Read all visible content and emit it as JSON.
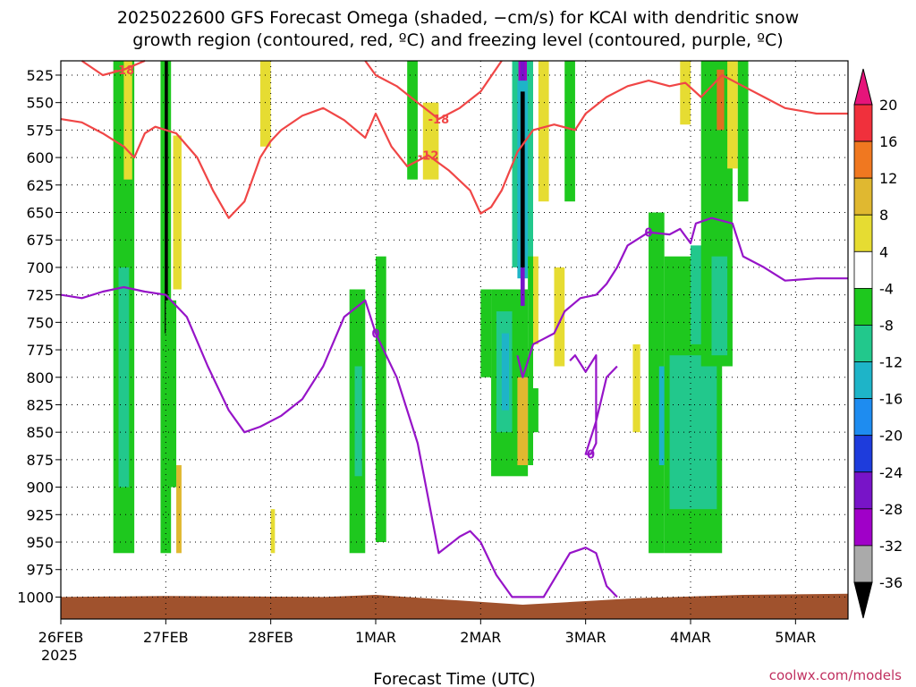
{
  "chart_data": {
    "type": "heatmap",
    "title_lines": [
      "2025022600 GFS Forecast Omega (shaded, −cm/s) for KCAI with dendritic snow",
      "growth region (contoured, red, ºC) and freezing level (contoured, purple, ºC)"
    ],
    "xlabel": "Forecast Time (UTC)",
    "x_ticks": [
      "26FEB",
      "27FEB",
      "28FEB",
      "1MAR",
      "2MAR",
      "3MAR",
      "4MAR",
      "5MAR"
    ],
    "x_year": "2025",
    "xlim_days": [
      0,
      7.5
    ],
    "ylabel": "",
    "y_ticks": [
      525,
      550,
      575,
      600,
      625,
      650,
      675,
      700,
      725,
      750,
      775,
      800,
      825,
      850,
      875,
      900,
      925,
      950,
      975,
      1000
    ],
    "ylim": [
      512,
      1020
    ],
    "grid": true,
    "colorbar": {
      "labels": [
        "20",
        "16",
        "12",
        "8",
        "4",
        "-4",
        "-8",
        "-12",
        "-16",
        "-20",
        "-24",
        "-28",
        "-32",
        "-36"
      ],
      "bins": [
        {
          "from": 16,
          "to": 20,
          "color": "#f0303c"
        },
        {
          "from": 12,
          "to": 16,
          "color": "#f07820"
        },
        {
          "from": 8,
          "to": 12,
          "color": "#e0b830"
        },
        {
          "from": 4,
          "to": 8,
          "color": "#e6dc32"
        },
        {
          "from": -4,
          "to": 4,
          "color": "#ffffff"
        },
        {
          "from": -8,
          "to": -4,
          "color": "#1ec81e"
        },
        {
          "from": -12,
          "to": -8,
          "color": "#22c88c"
        },
        {
          "from": -16,
          "to": -12,
          "color": "#1eb4c8"
        },
        {
          "from": -20,
          "to": -16,
          "color": "#1e8cf0"
        },
        {
          "from": -24,
          "to": -20,
          "color": "#1e3cdc"
        },
        {
          "from": -28,
          "to": -24,
          "color": "#7814c8"
        },
        {
          "from": -32,
          "to": -28,
          "color": "#a000c8"
        },
        {
          "from": -36,
          "to": -32,
          "color": "#aaaaaa"
        }
      ],
      "over_color": "#e6147a",
      "under_color": "#000000"
    },
    "omega_features": [
      {
        "x0": 0.5,
        "x1": 0.7,
        "p0": 510,
        "p1": 960,
        "color": "#1ec81e"
      },
      {
        "x0": 0.55,
        "x1": 0.65,
        "p0": 700,
        "p1": 900,
        "color": "#22c88c"
      },
      {
        "x0": 0.6,
        "x1": 0.68,
        "p0": 510,
        "p1": 620,
        "color": "#e6dc32"
      },
      {
        "x0": 0.95,
        "x1": 1.05,
        "p0": 510,
        "p1": 960,
        "color": "#1ec81e"
      },
      {
        "x0": 0.99,
        "x1": 1.02,
        "p0": 512,
        "p1": 760,
        "color": "#000000"
      },
      {
        "x0": 1.07,
        "x1": 1.15,
        "p0": 580,
        "p1": 720,
        "color": "#e6dc32"
      },
      {
        "x0": 1.1,
        "x1": 1.15,
        "p0": 880,
        "p1": 960,
        "color": "#e0b830"
      },
      {
        "x0": 1.0,
        "x1": 1.1,
        "p0": 730,
        "p1": 900,
        "color": "#1ec81e"
      },
      {
        "x0": 1.9,
        "x1": 2.0,
        "p0": 512,
        "p1": 590,
        "color": "#e6dc32"
      },
      {
        "x0": 2.0,
        "x1": 2.04,
        "p0": 920,
        "p1": 960,
        "color": "#e6dc32"
      },
      {
        "x0": 2.75,
        "x1": 2.9,
        "p0": 720,
        "p1": 960,
        "color": "#1ec81e"
      },
      {
        "x0": 2.8,
        "x1": 2.87,
        "p0": 790,
        "p1": 890,
        "color": "#22c88c"
      },
      {
        "x0": 3.0,
        "x1": 3.1,
        "p0": 690,
        "p1": 950,
        "color": "#1ec81e"
      },
      {
        "x0": 3.3,
        "x1": 3.4,
        "p0": 512,
        "p1": 620,
        "color": "#1ec81e"
      },
      {
        "x0": 3.45,
        "x1": 3.6,
        "p0": 550,
        "p1": 620,
        "color": "#e6dc32"
      },
      {
        "x0": 4.55,
        "x1": 4.65,
        "p0": 512,
        "p1": 640,
        "color": "#e6dc32"
      },
      {
        "x0": 4.8,
        "x1": 4.9,
        "p0": 512,
        "p1": 640,
        "color": "#1ec81e"
      },
      {
        "x0": 4.7,
        "x1": 4.8,
        "p0": 700,
        "p1": 790,
        "color": "#e6dc32"
      },
      {
        "x0": 4.0,
        "x1": 4.1,
        "p0": 720,
        "p1": 800,
        "color": "#1ec81e"
      },
      {
        "x0": 4.1,
        "x1": 4.45,
        "p0": 720,
        "p1": 890,
        "color": "#1ec81e"
      },
      {
        "x0": 4.15,
        "x1": 4.3,
        "p0": 740,
        "p1": 850,
        "color": "#22c88c"
      },
      {
        "x0": 4.2,
        "x1": 4.27,
        "p0": 760,
        "p1": 830,
        "color": "#1eb4c8"
      },
      {
        "x0": 4.3,
        "x1": 4.5,
        "p0": 512,
        "p1": 700,
        "color": "#22c88c"
      },
      {
        "x0": 4.36,
        "x1": 4.44,
        "p0": 512,
        "p1": 550,
        "color": "#a000c8"
      },
      {
        "x0": 4.38,
        "x1": 4.42,
        "p0": 512,
        "p1": 530,
        "color": "#7814c8"
      },
      {
        "x0": 4.35,
        "x1": 4.45,
        "p0": 530,
        "p1": 710,
        "color": "#1eb4c8"
      },
      {
        "x0": 4.38,
        "x1": 4.42,
        "p0": 540,
        "p1": 700,
        "color": "#000000"
      },
      {
        "x0": 4.38,
        "x1": 4.42,
        "p0": 700,
        "p1": 735,
        "color": "#7814c8"
      },
      {
        "x0": 4.5,
        "x1": 4.55,
        "p0": 810,
        "p1": 850,
        "color": "#1ec81e"
      },
      {
        "x0": 4.45,
        "x1": 4.5,
        "p0": 690,
        "p1": 880,
        "color": "#1ec81e"
      },
      {
        "x0": 4.5,
        "x1": 4.55,
        "p0": 690,
        "p1": 770,
        "color": "#e6dc32"
      },
      {
        "x0": 4.35,
        "x1": 4.45,
        "p0": 800,
        "p1": 880,
        "color": "#e0b830"
      },
      {
        "x0": 5.45,
        "x1": 5.52,
        "p0": 770,
        "p1": 850,
        "color": "#e6dc32"
      },
      {
        "x0": 5.6,
        "x1": 5.75,
        "p0": 650,
        "p1": 960,
        "color": "#1ec81e"
      },
      {
        "x0": 5.7,
        "x1": 5.85,
        "p0": 790,
        "p1": 880,
        "color": "#1eb4c8"
      },
      {
        "x0": 5.75,
        "x1": 6.3,
        "p0": 690,
        "p1": 960,
        "color": "#1ec81e"
      },
      {
        "x0": 5.8,
        "x1": 6.25,
        "p0": 780,
        "p1": 920,
        "color": "#22c88c"
      },
      {
        "x0": 6.0,
        "x1": 6.2,
        "p0": 680,
        "p1": 770,
        "color": "#22c88c"
      },
      {
        "x0": 6.1,
        "x1": 6.4,
        "p0": 512,
        "p1": 790,
        "color": "#1ec81e"
      },
      {
        "x0": 6.2,
        "x1": 6.35,
        "p0": 690,
        "p1": 780,
        "color": "#22c88c"
      },
      {
        "x0": 6.25,
        "x1": 6.32,
        "p0": 520,
        "p1": 575,
        "color": "#e07020"
      },
      {
        "x0": 5.9,
        "x1": 6.0,
        "p0": 512,
        "p1": 570,
        "color": "#e6dc32"
      },
      {
        "x0": 6.35,
        "x1": 6.45,
        "p0": 512,
        "p1": 610,
        "color": "#e6dc32"
      },
      {
        "x0": 6.45,
        "x1": 6.55,
        "p0": 512,
        "p1": 640,
        "color": "#1ec81e"
      }
    ],
    "series": [
      {
        "name": "-12",
        "color": "#f04646",
        "points": [
          [
            0,
            565
          ],
          [
            0.2,
            568
          ],
          [
            0.4,
            578
          ],
          [
            0.6,
            590
          ],
          [
            0.7,
            600
          ],
          [
            0.8,
            578
          ],
          [
            0.9,
            572
          ],
          [
            1.1,
            578
          ],
          [
            1.3,
            600
          ],
          [
            1.45,
            630
          ],
          [
            1.6,
            655
          ],
          [
            1.75,
            640
          ],
          [
            1.9,
            600
          ],
          [
            2.0,
            585
          ],
          [
            2.1,
            575
          ],
          [
            2.3,
            562
          ],
          [
            2.5,
            555
          ],
          [
            2.7,
            566
          ],
          [
            2.9,
            582
          ],
          [
            3.0,
            560
          ],
          [
            3.15,
            590
          ],
          [
            3.3,
            608
          ],
          [
            3.5,
            598
          ],
          [
            3.7,
            612
          ],
          [
            3.9,
            630
          ],
          [
            4.0,
            651
          ],
          [
            4.1,
            645
          ],
          [
            4.2,
            630
          ],
          [
            4.35,
            595
          ],
          [
            4.5,
            575
          ],
          [
            4.7,
            570
          ],
          [
            4.9,
            575
          ],
          [
            5.0,
            560
          ],
          [
            5.2,
            545
          ],
          [
            5.4,
            535
          ],
          [
            5.6,
            530
          ],
          [
            5.8,
            535
          ],
          [
            5.95,
            532
          ],
          [
            6.1,
            545
          ],
          [
            6.3,
            525
          ],
          [
            6.5,
            535
          ],
          [
            6.7,
            545
          ],
          [
            6.9,
            555
          ],
          [
            7.2,
            560
          ],
          [
            7.5,
            560
          ]
        ]
      },
      {
        "name": "-18",
        "color": "#f04646",
        "points": [
          [
            0.2,
            512
          ],
          [
            0.4,
            525
          ],
          [
            0.6,
            520
          ],
          [
            0.8,
            512
          ]
        ]
      },
      {
        "name": "-18",
        "color": "#f04646",
        "points": [
          [
            2.9,
            512
          ],
          [
            3.0,
            525
          ],
          [
            3.2,
            535
          ],
          [
            3.4,
            550
          ],
          [
            3.6,
            565
          ],
          [
            3.8,
            555
          ],
          [
            4.0,
            540
          ],
          [
            4.2,
            512
          ]
        ]
      },
      {
        "name": "0",
        "color": "#9614c8",
        "points": [
          [
            0,
            725
          ],
          [
            0.2,
            728
          ],
          [
            0.4,
            722
          ],
          [
            0.6,
            718
          ],
          [
            0.8,
            722
          ],
          [
            1.0,
            725
          ],
          [
            1.2,
            745
          ],
          [
            1.4,
            790
          ],
          [
            1.6,
            830
          ],
          [
            1.75,
            850
          ],
          [
            1.9,
            845
          ],
          [
            2.1,
            835
          ],
          [
            2.3,
            820
          ],
          [
            2.5,
            790
          ],
          [
            2.7,
            745
          ],
          [
            2.9,
            730
          ],
          [
            3.0,
            760
          ],
          [
            3.1,
            780
          ],
          [
            3.2,
            800
          ],
          [
            3.4,
            860
          ],
          [
            3.5,
            910
          ],
          [
            3.6,
            960
          ],
          [
            3.8,
            945
          ],
          [
            3.9,
            940
          ],
          [
            4.0,
            950
          ],
          [
            4.15,
            980
          ],
          [
            4.3,
            1000
          ],
          [
            4.6,
            1000
          ],
          [
            4.85,
            960
          ],
          [
            5.0,
            955
          ],
          [
            5.1,
            960
          ],
          [
            5.2,
            990
          ],
          [
            5.3,
            1000
          ]
        ]
      },
      {
        "name": "0",
        "color": "#9614c8",
        "points": [
          [
            4.35,
            780
          ],
          [
            4.4,
            800
          ],
          [
            4.5,
            770
          ],
          [
            4.6,
            765
          ],
          [
            4.7,
            760
          ],
          [
            4.8,
            740
          ],
          [
            4.95,
            728
          ],
          [
            5.1,
            725
          ],
          [
            5.2,
            715
          ],
          [
            5.3,
            700
          ],
          [
            5.4,
            680
          ],
          [
            5.6,
            668
          ],
          [
            5.8,
            670
          ],
          [
            5.9,
            665
          ],
          [
            6.0,
            678
          ],
          [
            6.05,
            660
          ],
          [
            6.2,
            655
          ],
          [
            6.4,
            660
          ],
          [
            6.5,
            690
          ],
          [
            6.7,
            700
          ],
          [
            6.9,
            712
          ],
          [
            7.2,
            710
          ],
          [
            7.5,
            710
          ]
        ]
      },
      {
        "name": "0",
        "color": "#9614c8",
        "points": [
          [
            4.85,
            785
          ],
          [
            4.9,
            780
          ],
          [
            5.0,
            795
          ],
          [
            5.1,
            780
          ],
          [
            5.1,
            860
          ],
          [
            5.05,
            870
          ],
          [
            5.0,
            870
          ],
          [
            5.1,
            840
          ],
          [
            5.15,
            820
          ],
          [
            5.2,
            800
          ],
          [
            5.3,
            790
          ]
        ]
      }
    ]
  },
  "watermark": "coolwx.com/models"
}
